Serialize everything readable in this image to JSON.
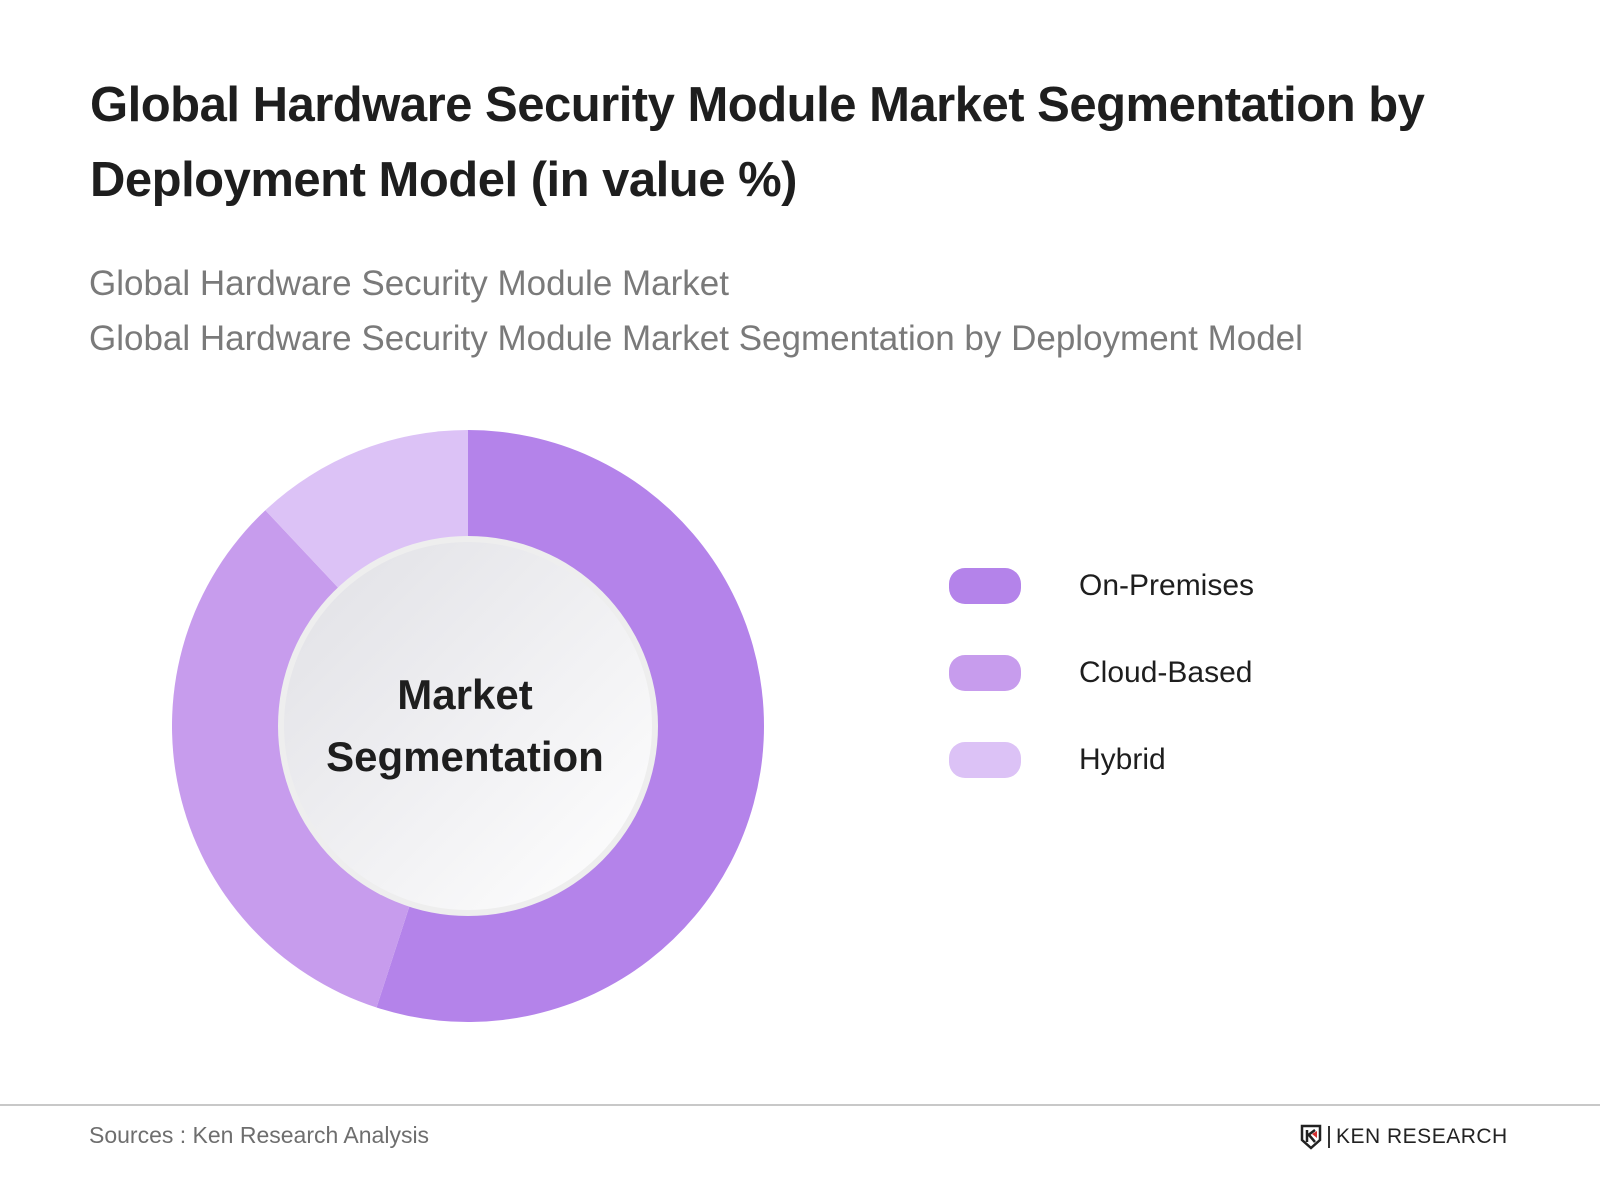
{
  "header": {
    "title": "Global Hardware Security Module Market Segmentation by Deployment Model (in value %)",
    "subtitle_line1": "Global Hardware Security Module Market",
    "subtitle_line2": "Global Hardware Security Module Market Segmentation by Deployment Model"
  },
  "center_label": {
    "line1": "Market",
    "line2": "Segmentation"
  },
  "legend": [
    {
      "label": "On-Premises",
      "color": "#b483ea"
    },
    {
      "label": "Cloud-Based",
      "color": "#c79ced"
    },
    {
      "label": "Hybrid",
      "color": "#dcc2f6"
    }
  ],
  "footer": {
    "source": "Sources : Ken Research Analysis",
    "logo_text": "KEN RESEARCH"
  },
  "chart_data": {
    "type": "pie",
    "variant": "donut",
    "title": "Global Hardware Security Module Market Segmentation by Deployment Model (in value %)",
    "categories": [
      "On-Premises",
      "Cloud-Based",
      "Hybrid"
    ],
    "values": [
      55,
      33,
      12
    ],
    "colors": [
      "#b483ea",
      "#c79ced",
      "#dcc2f6"
    ],
    "center_text": "Market Segmentation",
    "legend_position": "right",
    "unit": "%"
  }
}
